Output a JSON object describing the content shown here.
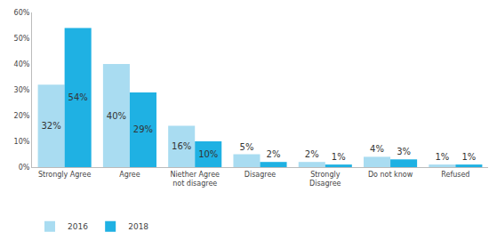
{
  "chart_data": {
    "type": "bar",
    "categories": [
      "Strongly Agree",
      "Agree",
      "Niether Agree not disagree",
      "Disagree",
      "Strongly Disagree",
      "Do not know",
      "Refused"
    ],
    "series": [
      {
        "name": "2016",
        "color": "#a9dcf1",
        "values": [
          32,
          40,
          16,
          5,
          2,
          4,
          1
        ],
        "value_labels": [
          "32%",
          "40%",
          "16%",
          "5%",
          "2%",
          "4%",
          "1%"
        ]
      },
      {
        "name": "2018",
        "color": "#1fb1e3",
        "values": [
          54,
          29,
          10,
          2,
          1,
          3,
          1
        ],
        "value_labels": [
          "54%",
          "29%",
          "10%",
          "2%",
          "1%",
          "3%",
          "1%"
        ]
      }
    ],
    "ylim": [
      0,
      60
    ],
    "yticks": [
      {
        "value": 0,
        "label": "0%"
      },
      {
        "value": 10,
        "label": "10%"
      },
      {
        "value": 20,
        "label": "20%"
      },
      {
        "value": 30,
        "label": "30%"
      },
      {
        "value": 40,
        "label": "40%"
      },
      {
        "value": 50,
        "label": "50%"
      },
      {
        "value": 60,
        "label": "60%"
      }
    ],
    "grid": false,
    "legend": "bottom left",
    "data_labels": true
  }
}
